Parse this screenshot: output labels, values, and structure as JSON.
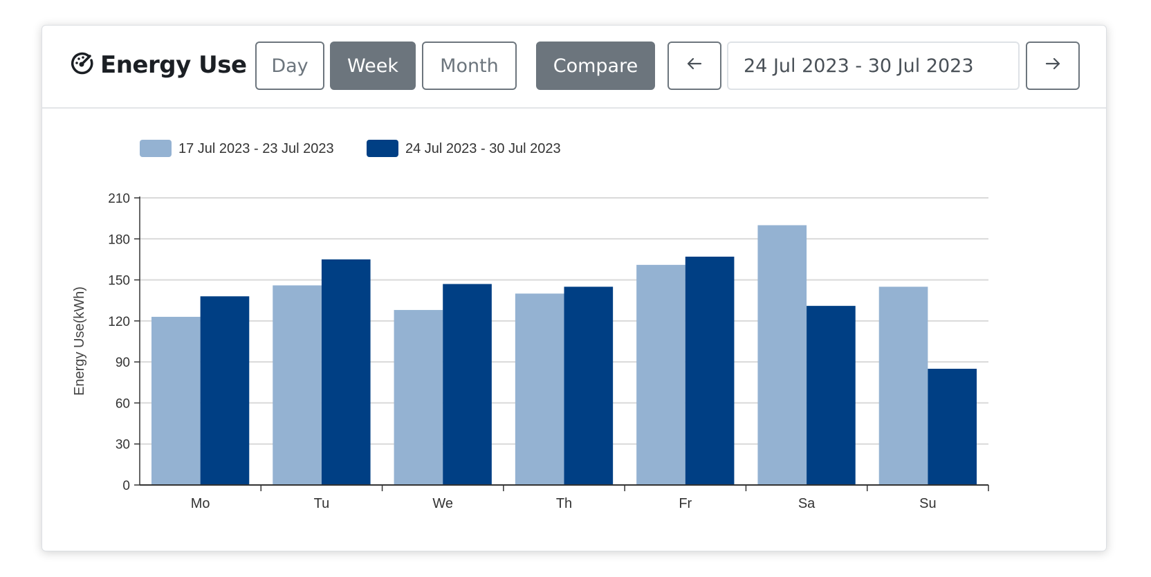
{
  "header": {
    "title": "Energy Use",
    "buttons": {
      "day": "Day",
      "week": "Week",
      "month": "Month",
      "compare": "Compare"
    },
    "date_range": "24 Jul 2023 - 30 Jul 2023",
    "prev_icon": "arrow-left-icon",
    "next_icon": "arrow-right-icon",
    "title_icon": "gauge-icon"
  },
  "colors": {
    "series1": "#94b2d2",
    "series2": "#003f84",
    "active_button": "#6c757d"
  },
  "chart_data": {
    "type": "bar",
    "title": "",
    "xlabel": "",
    "ylabel": "Energy Use(kWh)",
    "ylim": [
      0,
      210
    ],
    "yticks": [
      0,
      30,
      60,
      90,
      120,
      150,
      180,
      210
    ],
    "grid": true,
    "legend_position": "top-left",
    "categories": [
      "Mo",
      "Tu",
      "We",
      "Th",
      "Fr",
      "Sa",
      "Su"
    ],
    "series": [
      {
        "name": "17 Jul 2023 - 23 Jul 2023",
        "values": [
          123,
          146,
          128,
          140,
          161,
          190,
          145
        ]
      },
      {
        "name": "24 Jul 2023 - 30 Jul 2023",
        "values": [
          138,
          165,
          147,
          145,
          167,
          131,
          85
        ]
      }
    ]
  }
}
